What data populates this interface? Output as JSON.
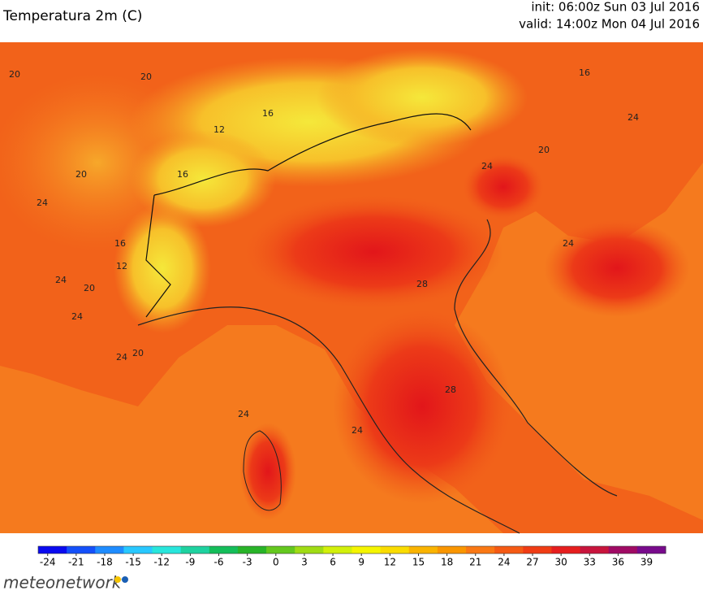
{
  "header": {
    "title": "Temperatura 2m (C)",
    "init": "init: 06:00z Sun 03 Jul 2016",
    "valid": "valid: 14:00z Mon 04 Jul 2016"
  },
  "map": {
    "contour_labels": [
      "20",
      "20",
      "16",
      "12",
      "16",
      "20",
      "24",
      "16",
      "12",
      "20",
      "24",
      "24",
      "20",
      "24",
      "24",
      "28",
      "24",
      "28",
      "24",
      "24",
      "16",
      "20",
      "24"
    ]
  },
  "colorbar": {
    "range": [
      -25,
      41
    ],
    "colors": [
      "#0a0af0",
      "#1450fa",
      "#1e8cff",
      "#28c8ff",
      "#28e6dc",
      "#1ed2a0",
      "#14be5a",
      "#28b428",
      "#64c81e",
      "#a0dc14",
      "#d2f00a",
      "#f5f500",
      "#fadc00",
      "#fab400",
      "#fa9600",
      "#fa7814",
      "#f55a14",
      "#f03c14",
      "#e61e1e",
      "#c8143c",
      "#a00a64",
      "#780a8c"
    ],
    "ticks": [
      -24,
      -21,
      -18,
      -15,
      -12,
      -9,
      -6,
      -3,
      0,
      3,
      6,
      9,
      12,
      15,
      18,
      21,
      24,
      27,
      30,
      33,
      36,
      39
    ]
  },
  "logo": "meteonetwork"
}
